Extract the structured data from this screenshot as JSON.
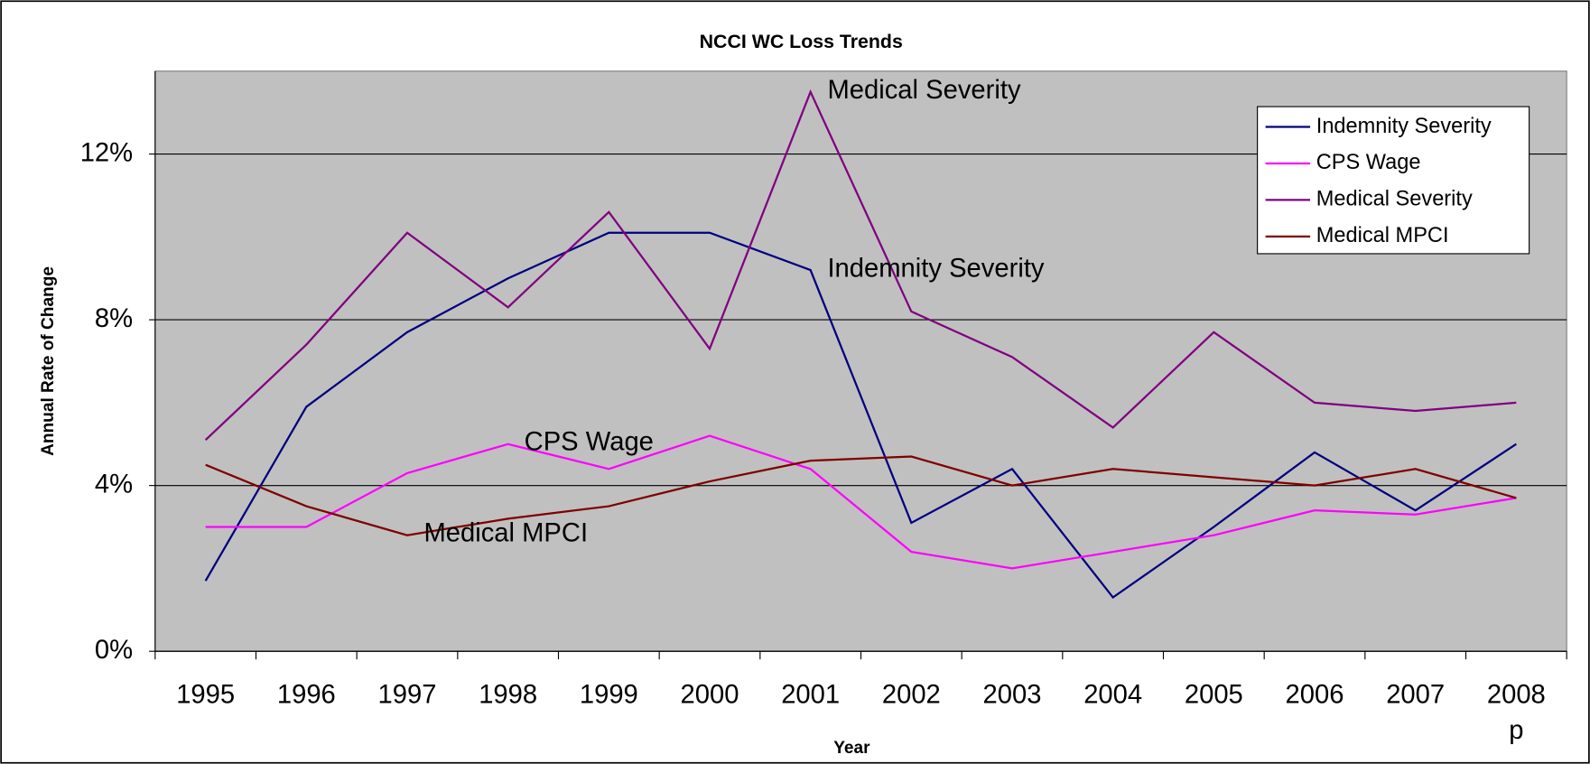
{
  "chart_data": {
    "type": "line",
    "title": "NCCI WC Loss Trends",
    "x_label": "Year",
    "y_label": "Annual Rate of Change",
    "categories": [
      "1995",
      "1996",
      "1997",
      "1998",
      "1999",
      "2000",
      "2001",
      "2002",
      "2003",
      "2004",
      "2005",
      "2006",
      "2007",
      "2008\np"
    ],
    "series": [
      {
        "name": "Indemnity Severity",
        "color": "#000080",
        "values": [
          1.7,
          5.9,
          7.7,
          9.0,
          10.1,
          10.1,
          9.2,
          3.1,
          4.4,
          1.3,
          3.0,
          4.8,
          3.4,
          5.0
        ]
      },
      {
        "name": "CPS Wage",
        "color": "#ff00ff",
        "values": [
          3.0,
          3.0,
          4.3,
          5.0,
          4.4,
          5.2,
          4.4,
          2.4,
          2.0,
          2.4,
          2.8,
          3.4,
          3.3,
          3.7
        ]
      },
      {
        "name": "Medical Severity",
        "color": "#800080",
        "values": [
          5.1,
          7.4,
          10.1,
          8.3,
          10.6,
          7.3,
          13.5,
          8.2,
          7.1,
          5.4,
          7.7,
          6.0,
          5.8,
          6.0
        ]
      },
      {
        "name": "Medical MPCI",
        "color": "#800000",
        "values": [
          4.5,
          3.5,
          2.8,
          3.2,
          3.5,
          4.1,
          4.6,
          4.7,
          4.0,
          4.4,
          4.2,
          4.0,
          4.4,
          3.7
        ]
      }
    ],
    "annotations": [
      "Medical Severity",
      "Indemnity Severity",
      "CPS Wage",
      "Medical MPCI"
    ],
    "ylim": [
      0,
      14
    ],
    "yticks": [
      {
        "value": 0,
        "label": "0%"
      },
      {
        "value": 4,
        "label": "4%"
      },
      {
        "value": 8,
        "label": "8%"
      },
      {
        "value": 12,
        "label": "12%"
      }
    ],
    "grid": true,
    "legend": "top-right",
    "plot_background": "#c0c0c0"
  }
}
